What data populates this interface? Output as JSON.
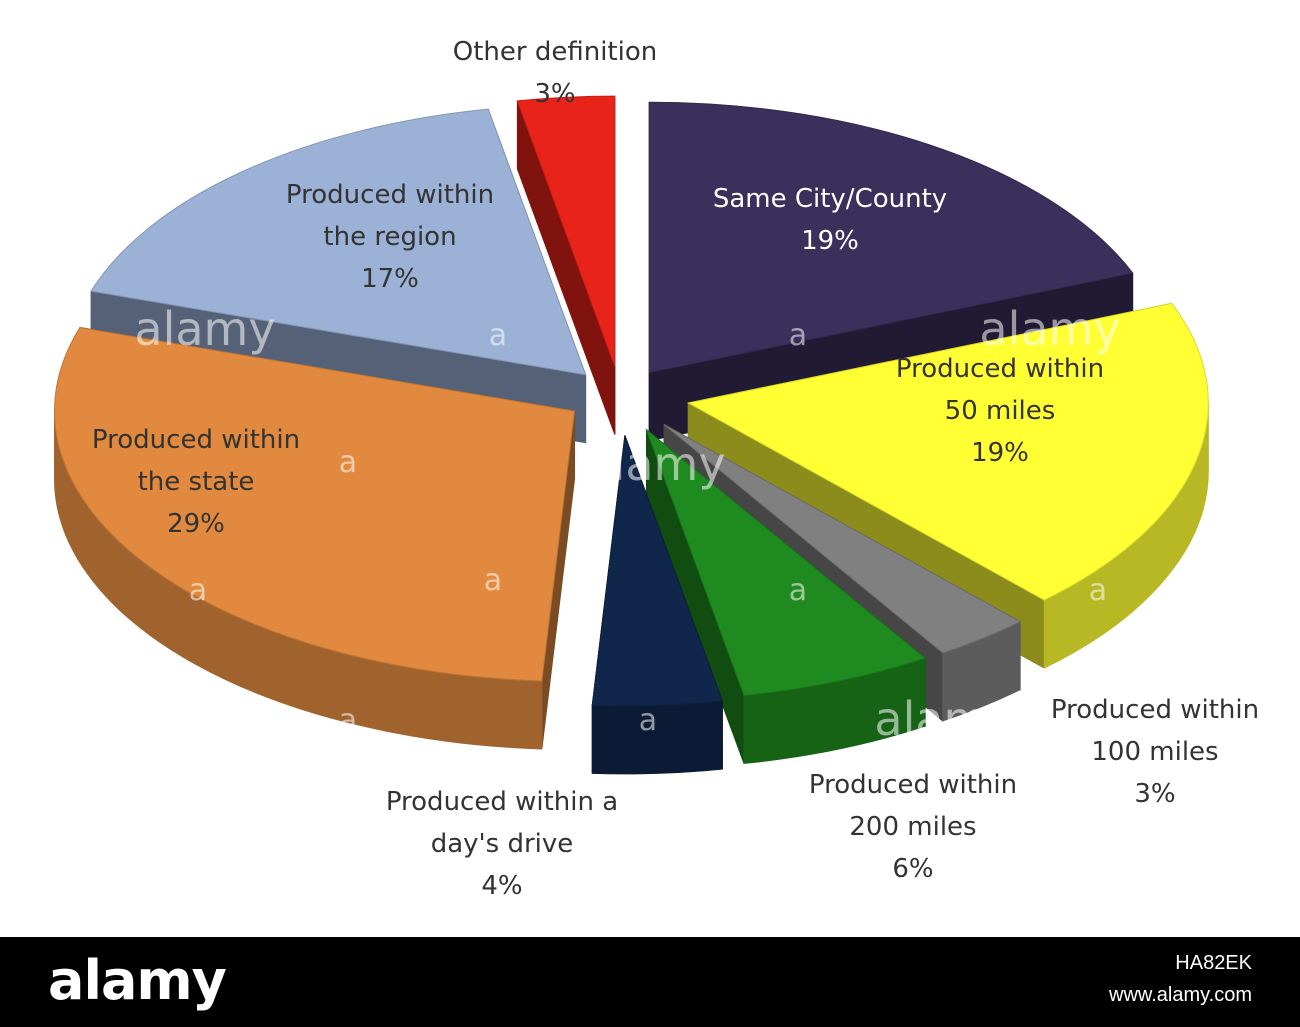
{
  "chart_data": {
    "type": "pie",
    "title": "",
    "slices": [
      {
        "label": "Same City/County",
        "label_lines": [
          "Same City/County"
        ],
        "percent_text": "19%",
        "value": 19,
        "color": "#3b2f5c",
        "label_color": "#ffffff"
      },
      {
        "label": "Produced within 50 miles",
        "label_lines": [
          "Produced within",
          "50 miles"
        ],
        "percent_text": "19%",
        "value": 19,
        "color": "#ffff33",
        "label_color": "#333333"
      },
      {
        "label": "Produced within 100 miles",
        "label_lines": [
          "Produced within",
          "100 miles"
        ],
        "percent_text": "3%",
        "value": 3,
        "color": "#808080",
        "label_color": "#333333"
      },
      {
        "label": "Produced within 200 miles",
        "label_lines": [
          "Produced within",
          "200 miles"
        ],
        "percent_text": "6%",
        "value": 6,
        "color": "#1f8a1f",
        "label_color": "#333333"
      },
      {
        "label": "Produced within a day's drive",
        "label_lines": [
          "Produced within a",
          "day's drive"
        ],
        "percent_text": "4%",
        "value": 4,
        "color": "#10264a",
        "label_color": "#333333"
      },
      {
        "label": "Produced within the state",
        "label_lines": [
          "Produced within",
          "the state"
        ],
        "percent_text": "29%",
        "value": 29,
        "color": "#e0893f",
        "label_color": "#333333"
      },
      {
        "label": "Produced within the region",
        "label_lines": [
          "Produced within",
          "the region"
        ],
        "percent_text": "17%",
        "value": 17,
        "color": "#9bb1d6",
        "label_color": "#333333"
      },
      {
        "label": "Other definition",
        "label_lines": [
          "Other definition"
        ],
        "percent_text": "3%",
        "value": 3,
        "color": "#e8231a",
        "label_color": "#333333"
      }
    ],
    "style": "3d-exploded-pie"
  },
  "watermark": {
    "logo_text": "alamy",
    "image_id": "HA82EK",
    "url": "www.alamy.com",
    "tile_text": "alamy",
    "tile_mark": "a"
  }
}
